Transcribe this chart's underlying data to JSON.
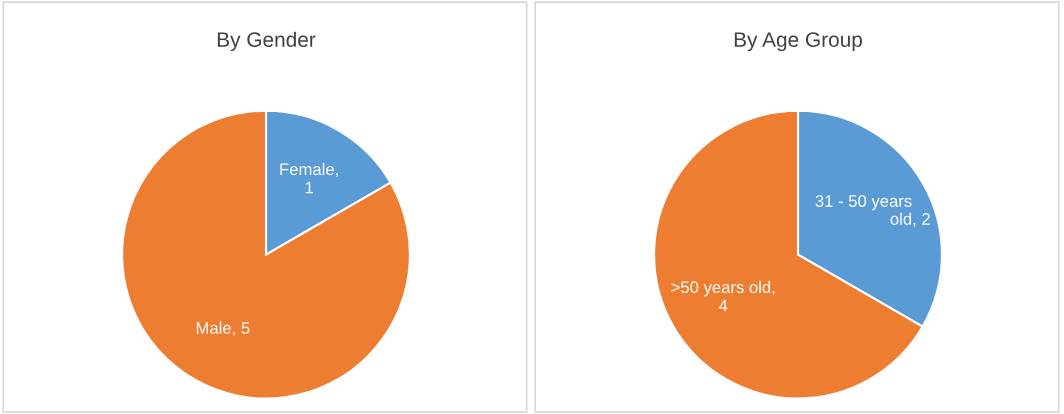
{
  "chart_data": [
    {
      "type": "pie",
      "title": "By Gender",
      "categories": [
        "Female",
        "Male"
      ],
      "values": [
        1,
        5
      ],
      "colors": [
        "#5b9bd5",
        "#ed7d31"
      ],
      "value_labels": [
        ", 1",
        ", 5"
      ]
    },
    {
      "type": "pie",
      "title": "By Age Group",
      "categories": [
        "31 - 50 years old",
        ">50 years old"
      ],
      "values": [
        2,
        4
      ],
      "colors": [
        "#5b9bd5",
        "#ed7d31"
      ],
      "value_labels": [
        ", 2",
        ", 4"
      ]
    }
  ]
}
